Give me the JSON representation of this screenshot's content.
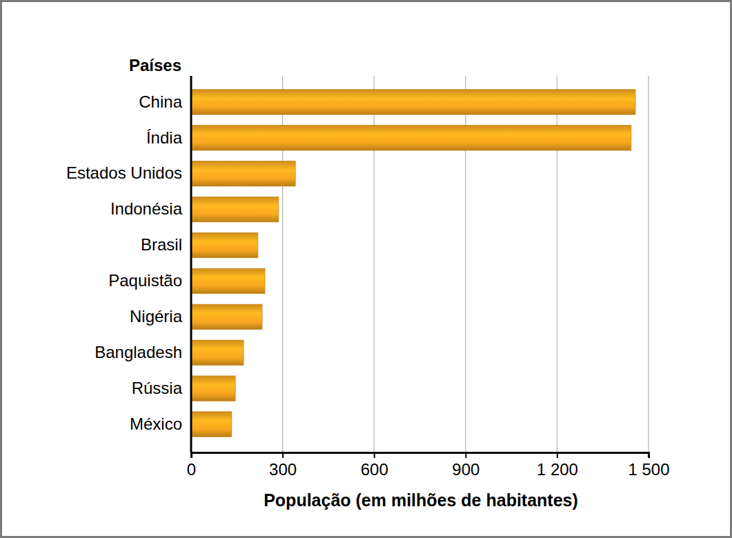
{
  "chart_data": {
    "type": "bar",
    "orientation": "horizontal",
    "y_label": "Países",
    "x_label": "População (em milhões de habitantes)",
    "categories": [
      "China",
      "Índia",
      "Estados Unidos",
      "Indonésia",
      "Brasil",
      "Paquistão",
      "Nigéria",
      "Bangladesh",
      "Rússia",
      "México"
    ],
    "values": [
      1457,
      1443,
      342,
      287,
      219,
      242,
      233,
      172,
      145,
      133
    ],
    "color": "#f7a71e",
    "xlim": [
      0,
      1500
    ],
    "xticks": [
      0,
      300,
      600,
      900,
      {
        "value": 1200,
        "label": "1 200"
      },
      {
        "value": 1500,
        "label": "1 500"
      }
    ],
    "grid": true
  }
}
